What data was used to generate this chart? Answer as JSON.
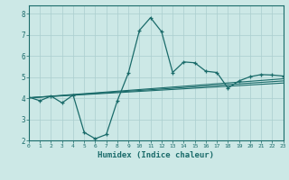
{
  "xlabel": "Humidex (Indice chaleur)",
  "background_color": "#cce8e6",
  "grid_color": "#aacece",
  "line_color": "#1a6b6a",
  "xlim": [
    0,
    23
  ],
  "ylim": [
    2,
    8.4
  ],
  "yticks": [
    2,
    3,
    4,
    5,
    6,
    7,
    8
  ],
  "xticks": [
    0,
    1,
    2,
    3,
    4,
    5,
    6,
    7,
    8,
    9,
    10,
    11,
    12,
    13,
    14,
    15,
    16,
    17,
    18,
    19,
    20,
    21,
    22,
    23
  ],
  "main_x": [
    0,
    1,
    2,
    3,
    4,
    5,
    6,
    7,
    8,
    9,
    10,
    11,
    12,
    13,
    14,
    15,
    16,
    17,
    18,
    19,
    20,
    21,
    22,
    23
  ],
  "main_y": [
    4.05,
    3.88,
    4.1,
    3.78,
    4.15,
    2.38,
    2.08,
    2.28,
    3.88,
    5.2,
    7.22,
    7.82,
    7.15,
    5.22,
    5.72,
    5.68,
    5.28,
    5.22,
    4.48,
    4.82,
    5.02,
    5.12,
    5.1,
    5.05
  ],
  "trend1_x": [
    0,
    23
  ],
  "trend1_y": [
    4.02,
    4.72
  ],
  "trend2_x": [
    0,
    23
  ],
  "trend2_y": [
    4.02,
    4.82
  ],
  "trend3_x": [
    0,
    23
  ],
  "trend3_y": [
    4.02,
    4.92
  ]
}
